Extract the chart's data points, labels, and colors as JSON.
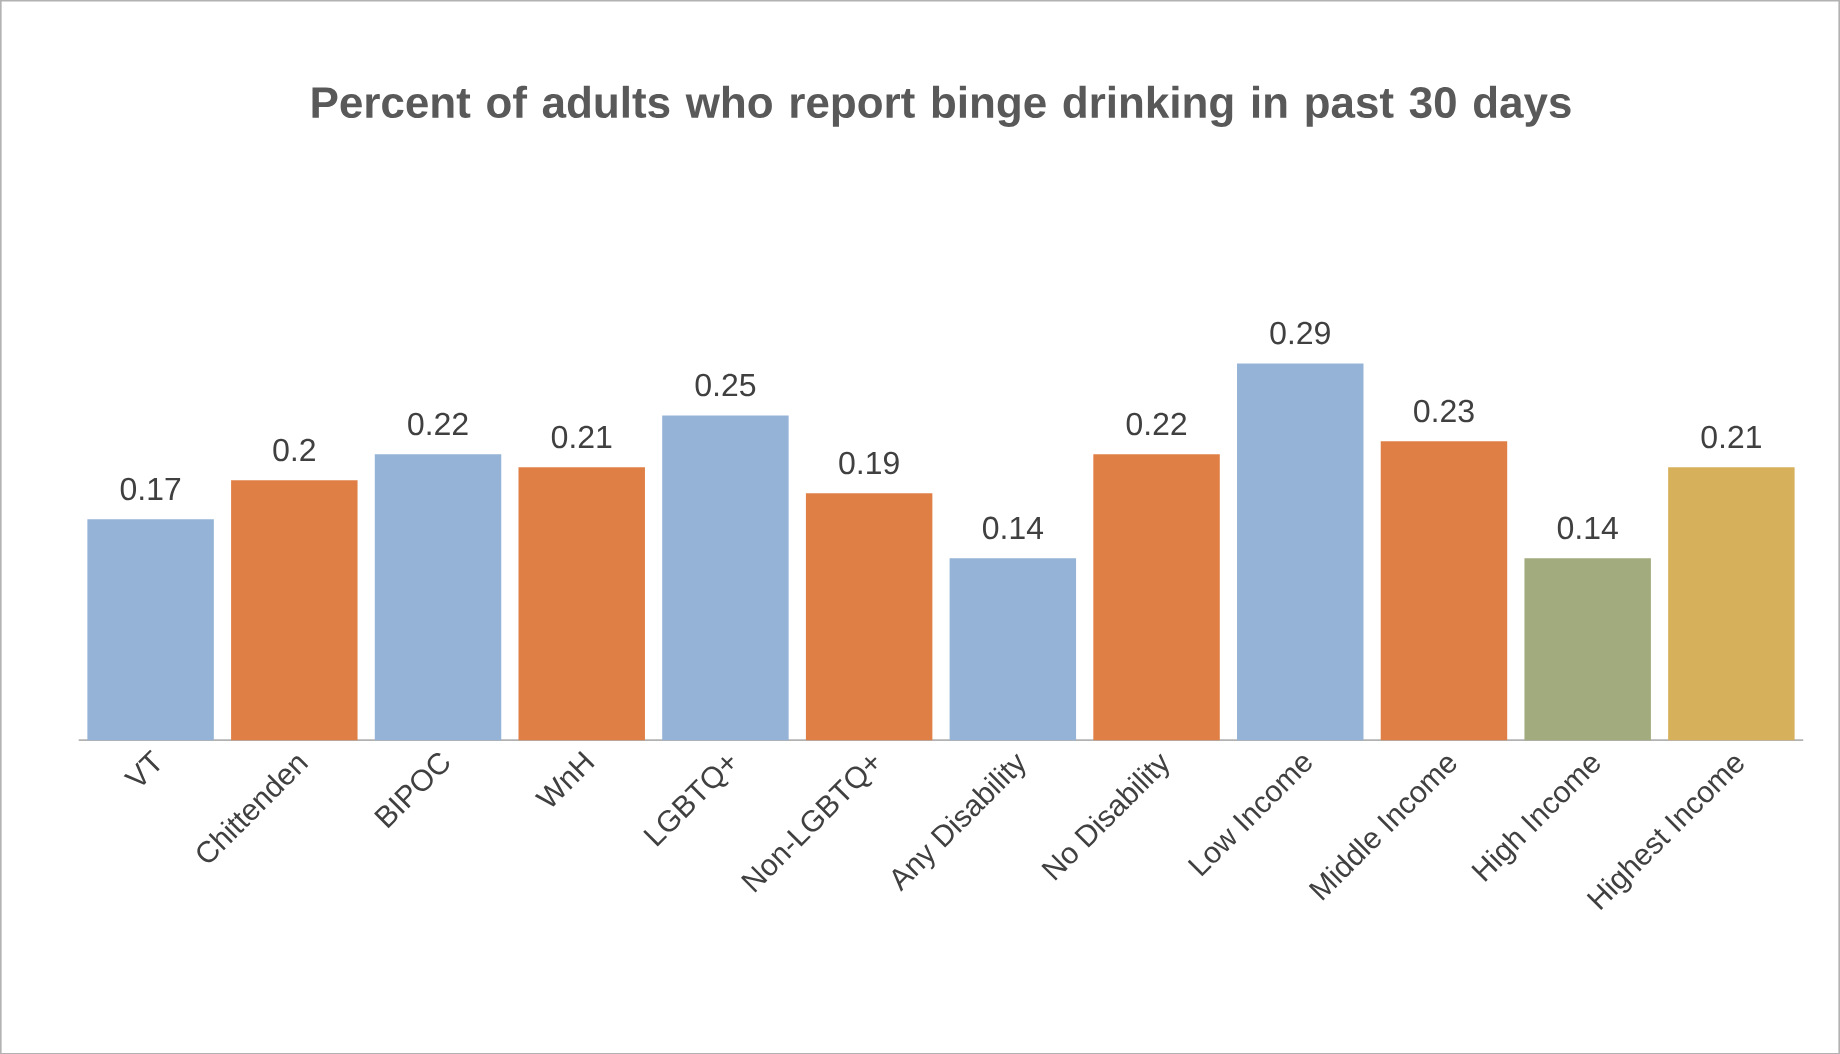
{
  "chart_data": {
    "type": "bar",
    "title": "Percent of adults who report binge drinking in past 30 days",
    "categories": [
      "VT",
      "Chittenden",
      "BIPOC",
      "WnH",
      "LGBTQ+",
      "Non-LGBTQ+",
      "Any Disability",
      "No Disability",
      "Low Income",
      "Middle Income",
      "High Income",
      "Highest Income"
    ],
    "values": [
      0.17,
      0.2,
      0.22,
      0.21,
      0.25,
      0.19,
      0.14,
      0.22,
      0.29,
      0.23,
      0.14,
      0.21
    ],
    "colors": [
      "#95b3d7",
      "#e07f45",
      "#95b3d7",
      "#e07f45",
      "#95b3d7",
      "#e07f45",
      "#95b3d7",
      "#e07f45",
      "#95b3d7",
      "#e07f45",
      "#a2ab7e",
      "#d6b05b"
    ],
    "data_labels": true
  }
}
